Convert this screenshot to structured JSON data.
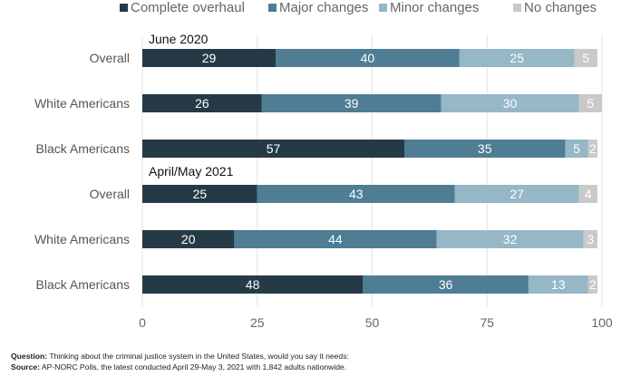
{
  "chart_data": {
    "type": "bar",
    "orientation": "horizontal",
    "stacked": true,
    "series_names": [
      "Complete overhaul",
      "Major changes",
      "Minor changes",
      "No changes"
    ],
    "colors": [
      "#253a46",
      "#4e7d94",
      "#95b7c6",
      "#c9c9c9"
    ],
    "groups": [
      {
        "label": "June 2020",
        "rows": [
          {
            "category": "Overall",
            "values": [
              29,
              40,
              25,
              5
            ]
          },
          {
            "category": "White Americans",
            "values": [
              26,
              39,
              30,
              5
            ]
          },
          {
            "category": "Black Americans",
            "values": [
              57,
              35,
              5,
              2
            ]
          }
        ]
      },
      {
        "label": "April/May 2021",
        "rows": [
          {
            "category": "Overall",
            "values": [
              25,
              43,
              27,
              4
            ]
          },
          {
            "category": "White Americans",
            "values": [
              20,
              44,
              32,
              3
            ]
          },
          {
            "category": "Black Americans",
            "values": [
              48,
              36,
              13,
              2
            ]
          }
        ]
      }
    ],
    "xlim": [
      0,
      100
    ],
    "xticks": [
      0,
      25,
      50,
      75,
      100
    ],
    "grid": true,
    "legend_position": "top"
  },
  "notes": {
    "question_label": "Question:",
    "question_text": " Thinking about the criminal justice system in the United States, would you say it needs:",
    "source_label": "Source:",
    "source_text": " AP-NORC Polls, the latest conducted April 29-May 3, 2021 with 1,842 adults nationwide."
  }
}
